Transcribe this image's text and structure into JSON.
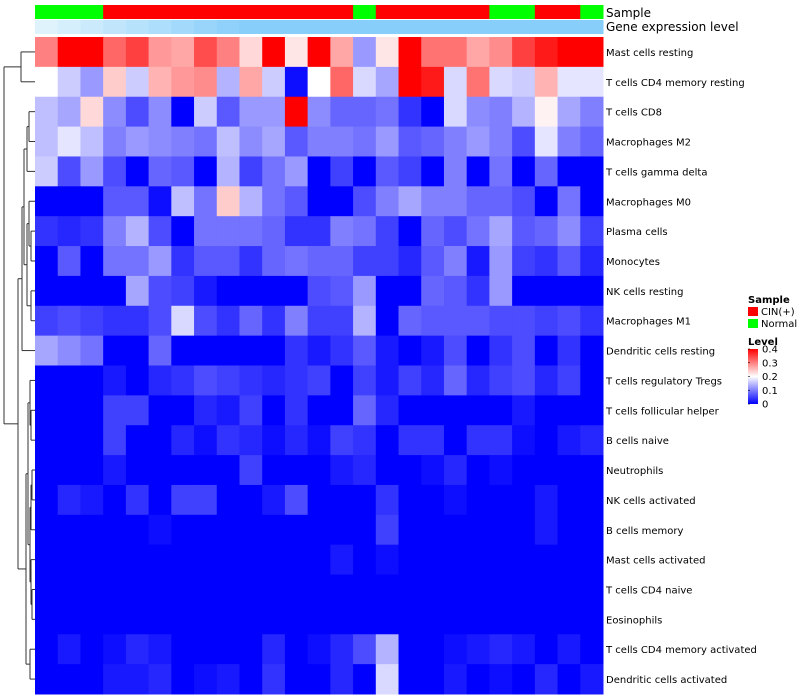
{
  "chart_data": {
    "type": "heatmap",
    "title": "",
    "annotation_tracks": [
      {
        "name": "Sample",
        "label": "Sample"
      },
      {
        "name": "Gene expression level",
        "label": "Gene expression level"
      }
    ],
    "sample_groups": [
      "N",
      "N",
      "N",
      "C",
      "C",
      "C",
      "C",
      "C",
      "C",
      "C",
      "C",
      "C",
      "C",
      "C",
      "N",
      "C",
      "C",
      "C",
      "C",
      "C",
      "N",
      "N",
      "C",
      "C",
      "N"
    ],
    "row_labels": [
      "Mast cells resting",
      "T cells CD4 memory resting",
      "T cells CD8",
      "Macrophages M2",
      "T cells gamma delta",
      "Macrophages M0",
      "Plasma cells",
      "Monocytes",
      "NK cells resting",
      "Macrophages M1",
      "Dendritic cells resting",
      "T cells regulatory  Tregs",
      "T cells follicular helper",
      "B cells naive",
      "Neutrophils",
      "NK cells activated",
      "B cells memory",
      "Mast cells activated",
      "T cells CD4 naive",
      "Eosinophils",
      "T cells CD4 memory activated",
      "Dendritic cells activated"
    ],
    "values": [
      [
        0.3,
        0.4,
        0.4,
        0.32,
        0.35,
        0.28,
        0.27,
        0.34,
        0.3,
        0.23,
        0.4,
        0.22,
        0.4,
        0.27,
        0.12,
        0.22,
        0.4,
        0.31,
        0.31,
        0.27,
        0.29,
        0.35,
        0.38,
        0.4,
        0.4
      ],
      [
        0.2,
        0.16,
        0.12,
        0.24,
        0.16,
        0.26,
        0.28,
        0.29,
        0.14,
        0.27,
        0.16,
        0.01,
        0.2,
        0.32,
        0.17,
        0.13,
        0.4,
        0.38,
        0.17,
        0.31,
        0.17,
        0.16,
        0.26,
        0.18,
        0.18
      ],
      [
        0.15,
        0.13,
        0.23,
        0.11,
        0.06,
        0.11,
        0.0,
        0.16,
        0.07,
        0.12,
        0.12,
        0.4,
        0.11,
        0.08,
        0.08,
        0.09,
        0.04,
        0.0,
        0.17,
        0.11,
        0.1,
        0.14,
        0.21,
        0.13,
        0.1
      ],
      [
        0.15,
        0.18,
        0.15,
        0.1,
        0.12,
        0.11,
        0.1,
        0.09,
        0.15,
        0.11,
        0.13,
        0.07,
        0.1,
        0.1,
        0.09,
        0.12,
        0.07,
        0.08,
        0.1,
        0.12,
        0.1,
        0.06,
        0.18,
        0.1,
        0.08
      ],
      [
        0.16,
        0.06,
        0.12,
        0.06,
        0.0,
        0.08,
        0.07,
        0.0,
        0.14,
        0.05,
        0.09,
        0.12,
        0.0,
        0.05,
        0.0,
        0.07,
        0.05,
        0.0,
        0.1,
        0.0,
        0.09,
        0.0,
        0.08,
        0.0,
        0.0
      ],
      [
        0.0,
        0.0,
        0.0,
        0.07,
        0.07,
        0.01,
        0.15,
        0.09,
        0.24,
        0.14,
        0.09,
        0.07,
        0.0,
        0.0,
        0.06,
        0.1,
        0.13,
        0.1,
        0.1,
        0.08,
        0.08,
        0.06,
        0.0,
        0.09,
        0.0
      ],
      [
        0.04,
        0.03,
        0.04,
        0.1,
        0.14,
        0.06,
        0.0,
        0.09,
        0.09,
        0.09,
        0.08,
        0.04,
        0.04,
        0.1,
        0.09,
        0.05,
        0.0,
        0.08,
        0.06,
        0.09,
        0.13,
        0.07,
        0.08,
        0.11,
        0.05
      ],
      [
        0.0,
        0.07,
        0.0,
        0.09,
        0.09,
        0.12,
        0.04,
        0.07,
        0.07,
        0.04,
        0.08,
        0.09,
        0.08,
        0.08,
        0.05,
        0.05,
        0.03,
        0.07,
        0.1,
        0.02,
        0.12,
        0.05,
        0.04,
        0.07,
        0.03
      ],
      [
        0.0,
        0.0,
        0.0,
        0.0,
        0.13,
        0.06,
        0.05,
        0.02,
        0.0,
        0.0,
        0.0,
        0.0,
        0.06,
        0.07,
        0.12,
        0.0,
        0.0,
        0.08,
        0.07,
        0.04,
        0.12,
        0.0,
        0.0,
        0.0,
        0.0
      ],
      [
        0.05,
        0.06,
        0.05,
        0.04,
        0.04,
        0.06,
        0.17,
        0.06,
        0.04,
        0.08,
        0.04,
        0.1,
        0.05,
        0.05,
        0.14,
        0.0,
        0.08,
        0.07,
        0.07,
        0.07,
        0.06,
        0.06,
        0.05,
        0.06,
        0.04
      ],
      [
        0.13,
        0.11,
        0.09,
        0.0,
        0.0,
        0.08,
        0.0,
        0.0,
        0.0,
        0.0,
        0.0,
        0.04,
        0.02,
        0.04,
        0.07,
        0.02,
        0.0,
        0.02,
        0.06,
        0.0,
        0.04,
        0.06,
        0.0,
        0.04,
        0.0
      ],
      [
        0.0,
        0.0,
        0.0,
        0.02,
        0.0,
        0.03,
        0.04,
        0.06,
        0.05,
        0.04,
        0.03,
        0.04,
        0.05,
        0.0,
        0.05,
        0.02,
        0.05,
        0.03,
        0.08,
        0.03,
        0.05,
        0.06,
        0.03,
        0.05,
        0.0
      ],
      [
        0.0,
        0.0,
        0.0,
        0.05,
        0.05,
        0.0,
        0.0,
        0.03,
        0.02,
        0.05,
        0.0,
        0.04,
        0.0,
        0.0,
        0.08,
        0.03,
        0.0,
        0.0,
        0.0,
        0.0,
        0.0,
        0.02,
        0.0,
        0.0,
        0.0
      ],
      [
        0.0,
        0.0,
        0.0,
        0.05,
        0.0,
        0.0,
        0.03,
        0.01,
        0.04,
        0.03,
        0.01,
        0.03,
        0.01,
        0.05,
        0.04,
        0.0,
        0.04,
        0.04,
        0.0,
        0.04,
        0.04,
        0.01,
        0.0,
        0.02,
        0.03
      ],
      [
        0.0,
        0.0,
        0.0,
        0.02,
        0.0,
        0.0,
        0.0,
        0.0,
        0.0,
        0.05,
        0.0,
        0.0,
        0.0,
        0.02,
        0.03,
        0.0,
        0.0,
        0.01,
        0.03,
        0.0,
        0.01,
        0.0,
        0.0,
        0.0,
        0.0
      ],
      [
        0.0,
        0.03,
        0.02,
        0.0,
        0.04,
        0.0,
        0.05,
        0.05,
        0.0,
        0.0,
        0.02,
        0.06,
        0.0,
        0.0,
        0.0,
        0.04,
        0.0,
        0.0,
        0.01,
        0.0,
        0.0,
        0.0,
        0.02,
        0.0,
        0.0
      ],
      [
        0.0,
        0.0,
        0.0,
        0.0,
        0.0,
        0.01,
        0.0,
        0.0,
        0.0,
        0.0,
        0.0,
        0.0,
        0.0,
        0.0,
        0.0,
        0.05,
        0.0,
        0.0,
        0.0,
        0.0,
        0.0,
        0.0,
        0.02,
        0.0,
        0.0
      ],
      [
        0.0,
        0.0,
        0.0,
        0.0,
        0.0,
        0.0,
        0.0,
        0.0,
        0.0,
        0.0,
        0.0,
        0.0,
        0.0,
        0.02,
        0.0,
        0.01,
        0.0,
        0.0,
        0.0,
        0.0,
        0.0,
        0.0,
        0.0,
        0.0,
        0.0
      ],
      [
        0.0,
        0.0,
        0.0,
        0.0,
        0.0,
        0.0,
        0.0,
        0.0,
        0.0,
        0.0,
        0.0,
        0.0,
        0.0,
        0.0,
        0.0,
        0.0,
        0.0,
        0.0,
        0.0,
        0.0,
        0.0,
        0.0,
        0.0,
        0.0,
        0.0
      ],
      [
        0.0,
        0.0,
        0.0,
        0.0,
        0.0,
        0.0,
        0.0,
        0.0,
        0.0,
        0.0,
        0.0,
        0.0,
        0.0,
        0.0,
        0.0,
        0.0,
        0.0,
        0.0,
        0.0,
        0.0,
        0.0,
        0.0,
        0.0,
        0.0,
        0.0
      ],
      [
        0.0,
        0.02,
        0.0,
        0.01,
        0.03,
        0.02,
        0.0,
        0.0,
        0.0,
        0.0,
        0.03,
        0.0,
        0.01,
        0.03,
        0.06,
        0.14,
        0.0,
        0.0,
        0.01,
        0.02,
        0.03,
        0.02,
        0.0,
        0.02,
        0.0
      ],
      [
        0.0,
        0.0,
        0.0,
        0.02,
        0.02,
        0.03,
        0.0,
        0.01,
        0.02,
        0.0,
        0.04,
        0.0,
        0.0,
        0.03,
        0.0,
        0.17,
        0.0,
        0.0,
        0.02,
        0.0,
        0.01,
        0.0,
        0.03,
        0.0,
        0.02
      ]
    ],
    "color_scale": {
      "type": "diverging",
      "min": 0,
      "mid": 0.2,
      "max": 0.4,
      "low": "#0000ff",
      "mid_color": "#ffffff",
      "high": "#ff0000"
    },
    "legend": {
      "position": "right",
      "sample_title": "Sample",
      "sample_entries": [
        {
          "label": "CIN(+)",
          "color": "#ff0000"
        },
        {
          "label": "Normal",
          "color": "#00ff00"
        }
      ],
      "level_title": "Level",
      "level_ticks": [
        0.4,
        0.3,
        0.2,
        0.1,
        0
      ],
      "level_tick_labels": [
        "0.4",
        "0.3",
        "0.2",
        "0.1",
        "0"
      ]
    },
    "group_colors": {
      "C": "#ff0000",
      "N": "#00ff00"
    },
    "expression_track_color": "#87cefa",
    "expression_track_gradient_start": "#dff3fd",
    "row_dendrogram": true
  }
}
